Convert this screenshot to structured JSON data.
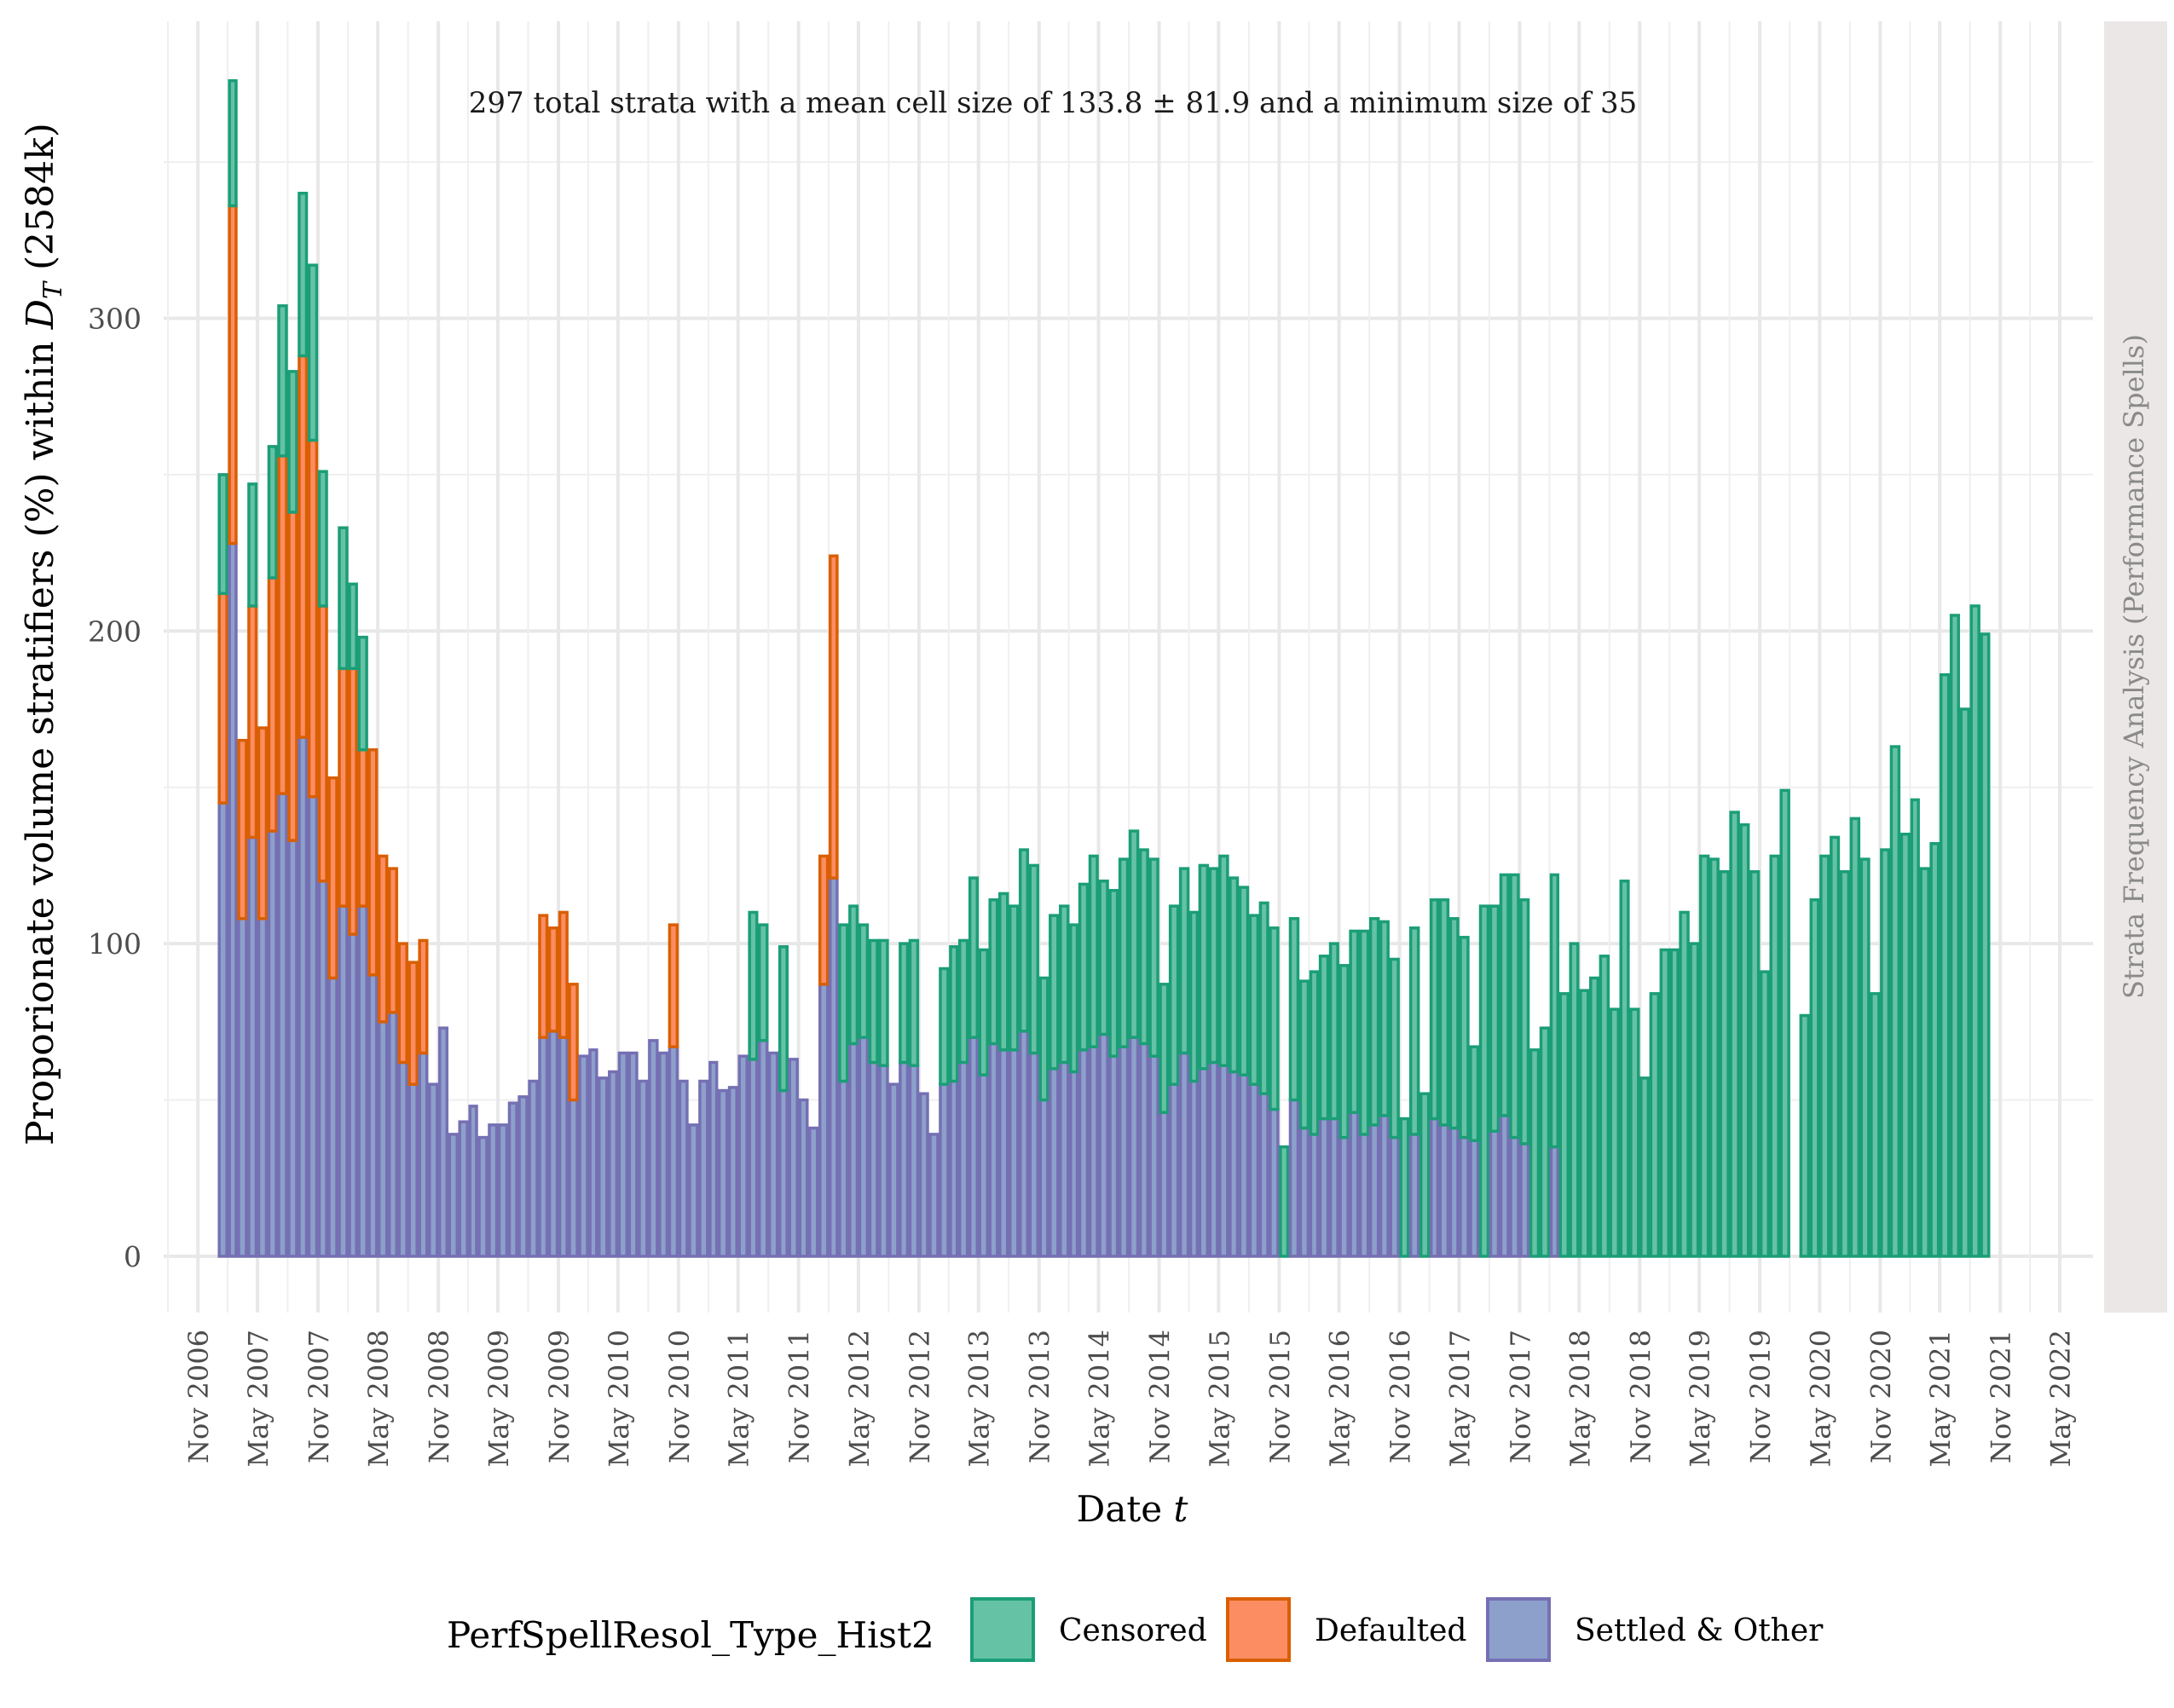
{
  "chart_data": {
    "type": "bar",
    "stacked": true,
    "annotation": "297 total strata with a mean cell size of 133.8 ± 81.9 and a minimum size of 35",
    "xlabel": "Date t",
    "ylabel": "Proporionate volume stratifiers (%) within D_T (2584k)",
    "facet_label": "Strata Frequency Analysis (Performance Spells)",
    "legend_title": "PerfSpellResol_Type_Hist2",
    "legend_position": "bottom",
    "grid": true,
    "ylim": [
      -18,
      395
    ],
    "xlim": [
      "2006-07-20",
      "2022-08-10"
    ],
    "yticks": [
      0,
      100,
      200,
      300
    ],
    "xticks": [
      {
        "date": "2006-11-01",
        "label": "Nov 2006"
      },
      {
        "date": "2007-05-01",
        "label": "May 2007"
      },
      {
        "date": "2007-11-01",
        "label": "Nov 2007"
      },
      {
        "date": "2008-05-01",
        "label": "May 2008"
      },
      {
        "date": "2008-11-01",
        "label": "Nov 2008"
      },
      {
        "date": "2009-05-01",
        "label": "May 2009"
      },
      {
        "date": "2009-11-01",
        "label": "Nov 2009"
      },
      {
        "date": "2010-05-01",
        "label": "May 2010"
      },
      {
        "date": "2010-11-01",
        "label": "Nov 2010"
      },
      {
        "date": "2011-05-01",
        "label": "May 2011"
      },
      {
        "date": "2011-11-01",
        "label": "Nov 2011"
      },
      {
        "date": "2012-05-01",
        "label": "May 2012"
      },
      {
        "date": "2012-11-01",
        "label": "Nov 2012"
      },
      {
        "date": "2013-05-01",
        "label": "May 2013"
      },
      {
        "date": "2013-11-01",
        "label": "Nov 2013"
      },
      {
        "date": "2014-05-01",
        "label": "May 2014"
      },
      {
        "date": "2014-11-01",
        "label": "Nov 2014"
      },
      {
        "date": "2015-05-01",
        "label": "May 2015"
      },
      {
        "date": "2015-11-01",
        "label": "Nov 2015"
      },
      {
        "date": "2016-05-01",
        "label": "May 2016"
      },
      {
        "date": "2016-11-01",
        "label": "Nov 2016"
      },
      {
        "date": "2017-05-01",
        "label": "May 2017"
      },
      {
        "date": "2017-11-01",
        "label": "Nov 2017"
      },
      {
        "date": "2018-05-01",
        "label": "May 2018"
      },
      {
        "date": "2018-11-01",
        "label": "Nov 2018"
      },
      {
        "date": "2019-05-01",
        "label": "May 2019"
      },
      {
        "date": "2019-11-01",
        "label": "Nov 2019"
      },
      {
        "date": "2020-05-01",
        "label": "May 2020"
      },
      {
        "date": "2020-11-01",
        "label": "Nov 2020"
      },
      {
        "date": "2021-05-01",
        "label": "May 2021"
      },
      {
        "date": "2021-11-01",
        "label": "Nov 2021"
      },
      {
        "date": "2022-05-01",
        "label": "May 2022"
      }
    ],
    "series": [
      {
        "name": "Censored",
        "fill": "#66c2a5",
        "stroke": "#1b9e77"
      },
      {
        "name": "Defaulted",
        "fill": "#fc8d62",
        "stroke": "#d95f02"
      },
      {
        "name": "Settled & Other",
        "fill": "#8da0cb",
        "stroke": "#7570b3"
      }
    ],
    "x": [
      "2007-01",
      "2007-02",
      "2007-03",
      "2007-04",
      "2007-05",
      "2007-06",
      "2007-07",
      "2007-08",
      "2007-09",
      "2007-10",
      "2007-11",
      "2007-12",
      "2008-01",
      "2008-02",
      "2008-03",
      "2008-04",
      "2008-05",
      "2008-06",
      "2008-07",
      "2008-08",
      "2008-09",
      "2008-10",
      "2008-11",
      "2008-12",
      "2009-01",
      "2009-02",
      "2009-03",
      "2009-04",
      "2009-05",
      "2009-06",
      "2009-07",
      "2009-08",
      "2009-09",
      "2009-10",
      "2009-11",
      "2009-12",
      "2010-01",
      "2010-02",
      "2010-03",
      "2010-04",
      "2010-05",
      "2010-06",
      "2010-07",
      "2010-08",
      "2010-09",
      "2010-10",
      "2010-11",
      "2010-12",
      "2011-01",
      "2011-02",
      "2011-03",
      "2011-04",
      "2011-05",
      "2011-06",
      "2011-07",
      "2011-08",
      "2011-09",
      "2011-10",
      "2011-11",
      "2011-12",
      "2012-01",
      "2012-02",
      "2012-03",
      "2012-04",
      "2012-05",
      "2012-06",
      "2012-07",
      "2012-08",
      "2012-09",
      "2012-10",
      "2012-11",
      "2012-12",
      "2013-01",
      "2013-02",
      "2013-03",
      "2013-04",
      "2013-05",
      "2013-06",
      "2013-07",
      "2013-08",
      "2013-09",
      "2013-10",
      "2013-11",
      "2013-12",
      "2014-01",
      "2014-02",
      "2014-03",
      "2014-04",
      "2014-05",
      "2014-06",
      "2014-07",
      "2014-08",
      "2014-09",
      "2014-10",
      "2014-11",
      "2014-12",
      "2015-01",
      "2015-02",
      "2015-03",
      "2015-04",
      "2015-05",
      "2015-06",
      "2015-07",
      "2015-08",
      "2015-09",
      "2015-10",
      "2015-11",
      "2015-12",
      "2016-01",
      "2016-02",
      "2016-03",
      "2016-04",
      "2016-05",
      "2016-06",
      "2016-07",
      "2016-08",
      "2016-09",
      "2016-10",
      "2016-11",
      "2016-12",
      "2017-01",
      "2017-02",
      "2017-03",
      "2017-04",
      "2017-05",
      "2017-06",
      "2017-07",
      "2017-08",
      "2017-09",
      "2017-10",
      "2017-11",
      "2017-12",
      "2018-01",
      "2018-02",
      "2018-03",
      "2018-04",
      "2018-05",
      "2018-06",
      "2018-07",
      "2018-08",
      "2018-09",
      "2018-10",
      "2018-11",
      "2018-12",
      "2019-01",
      "2019-02",
      "2019-03",
      "2019-04",
      "2019-05",
      "2019-06",
      "2019-07",
      "2019-08",
      "2019-09",
      "2019-10",
      "2019-11",
      "2019-12",
      "2020-01",
      "2020-02",
      "2020-03",
      "2020-04",
      "2020-05",
      "2020-06",
      "2020-07",
      "2020-08",
      "2020-09",
      "2020-10",
      "2020-11",
      "2020-12",
      "2021-01",
      "2021-02",
      "2021-03",
      "2021-04",
      "2021-05",
      "2021-06",
      "2021-07",
      "2021-08",
      "2021-09",
      "2021-10",
      "2021-11",
      "2021-12"
    ],
    "settled": [
      145,
      228,
      108,
      134,
      108,
      136,
      148,
      133,
      166,
      147,
      120,
      89,
      112,
      103,
      112,
      90,
      75,
      78,
      62,
      55,
      65,
      55,
      73,
      39,
      43,
      48,
      38,
      42,
      42,
      49,
      51,
      56,
      70,
      72,
      70,
      50,
      64,
      66,
      57,
      59,
      65,
      65,
      56,
      69,
      65,
      67,
      56,
      42,
      56,
      62,
      53,
      54,
      64,
      63,
      69,
      65,
      53,
      63,
      50,
      41,
      87,
      121,
      56,
      68,
      70,
      62,
      61,
      55,
      62,
      61,
      52,
      39,
      55,
      56,
      62,
      70,
      58,
      68,
      66,
      66,
      72,
      65,
      50,
      60,
      62,
      59,
      66,
      67,
      71,
      64,
      67,
      70,
      68,
      64,
      46,
      55,
      65,
      56,
      60,
      62,
      61,
      59,
      58,
      55,
      52,
      47,
      0,
      50,
      41,
      39,
      44,
      44,
      38,
      46,
      39,
      42,
      45,
      38,
      0,
      39,
      0,
      44,
      42,
      41,
      38,
      37,
      0,
      40,
      45,
      38,
      36,
      0,
      0,
      35,
      0,
      0,
      0,
      0,
      0,
      0,
      0,
      0,
      0,
      0,
      0,
      0,
      0,
      0,
      0,
      0,
      0,
      0,
      0,
      0,
      0,
      0,
      0,
      0,
      0,
      0,
      0,
      0,
      0,
      0,
      0,
      0,
      0,
      0,
      0,
      0,
      0,
      0,
      0,
      0,
      0,
      0,
      0,
      0,
      0,
      0
    ],
    "defaulted": [
      67,
      108,
      57,
      74,
      61,
      81,
      108,
      105,
      122,
      114,
      88,
      64,
      76,
      85,
      50,
      72,
      53,
      46,
      38,
      39,
      36,
      0,
      0,
      0,
      0,
      0,
      0,
      0,
      0,
      0,
      0,
      0,
      39,
      33,
      40,
      37,
      0,
      0,
      0,
      0,
      0,
      0,
      0,
      0,
      0,
      39,
      0,
      0,
      0,
      0,
      0,
      0,
      0,
      0,
      0,
      0,
      0,
      0,
      0,
      0,
      41,
      103,
      0,
      0,
      0,
      0,
      0,
      0,
      0,
      0,
      0,
      0,
      0,
      0,
      0,
      0,
      0,
      0,
      0,
      0,
      0,
      0,
      0,
      0,
      0,
      0,
      0,
      0,
      0,
      0,
      0,
      0,
      0,
      0,
      0,
      0,
      0,
      0,
      0,
      0,
      0,
      0,
      0,
      0,
      0,
      0,
      0,
      0,
      0,
      0,
      0,
      0,
      0,
      0,
      0,
      0,
      0,
      0,
      0,
      0,
      0,
      0,
      0,
      0,
      0,
      0,
      0,
      0,
      0,
      0,
      0,
      0,
      0,
      0,
      0,
      0,
      0,
      0,
      0,
      0,
      0,
      0,
      0,
      0,
      0,
      0,
      0,
      0,
      0,
      0,
      0,
      0,
      0,
      0,
      0,
      0,
      0,
      0,
      0,
      0,
      0,
      0,
      0,
      0,
      0,
      0,
      0,
      0,
      0,
      0,
      0,
      0,
      0,
      0,
      0,
      0,
      0,
      0,
      0,
      0,
      0,
      0
    ],
    "censored": [
      38,
      40,
      0,
      39,
      0,
      42,
      48,
      45,
      52,
      56,
      43,
      0,
      45,
      27,
      36,
      0,
      0,
      0,
      0,
      0,
      0,
      0,
      0,
      0,
      0,
      0,
      0,
      0,
      0,
      0,
      0,
      0,
      0,
      0,
      0,
      0,
      0,
      0,
      0,
      0,
      0,
      0,
      0,
      0,
      0,
      0,
      0,
      0,
      0,
      0,
      0,
      0,
      0,
      47,
      37,
      0,
      46,
      0,
      0,
      0,
      0,
      0,
      50,
      44,
      36,
      39,
      40,
      0,
      38,
      40,
      0,
      0,
      37,
      43,
      39,
      51,
      40,
      46,
      50,
      46,
      58,
      60,
      39,
      49,
      50,
      47,
      53,
      61,
      49,
      53,
      60,
      66,
      62,
      63,
      41,
      57,
      59,
      54,
      65,
      62,
      67,
      62,
      60,
      54,
      61,
      58,
      35,
      58,
      47,
      52,
      52,
      56,
      55,
      58,
      65,
      66,
      62,
      57,
      44,
      66,
      52,
      70,
      72,
      67,
      64,
      30,
      112,
      72,
      77,
      84,
      78,
      66,
      73,
      87,
      84,
      100,
      85,
      89,
      96,
      79,
      120,
      79,
      57,
      84,
      98,
      98,
      110,
      100,
      128,
      127,
      123,
      142,
      138,
      123,
      91,
      128,
      149,
      0,
      77,
      114,
      128,
      134,
      123,
      140,
      127,
      84,
      130,
      163,
      135,
      146,
      124,
      132,
      186,
      205,
      175,
      208,
      199,
      0
    ]
  }
}
